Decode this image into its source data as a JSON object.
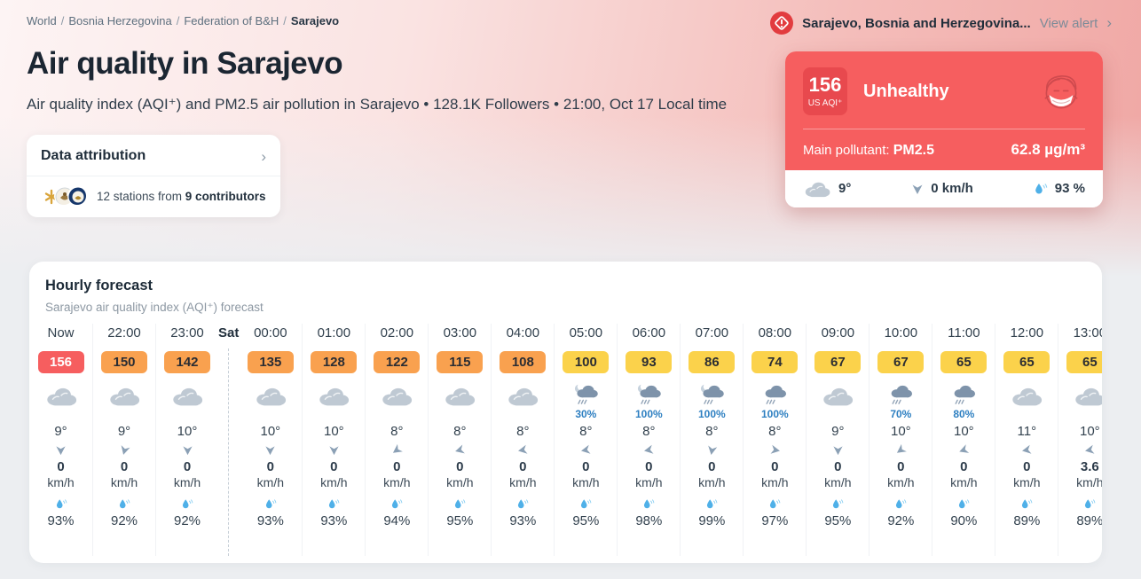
{
  "breadcrumb": {
    "separator": "/",
    "items": [
      "World",
      "Bosnia Herzegovina",
      "Federation of B&H"
    ],
    "current": "Sarajevo"
  },
  "alert": {
    "location": "Sarajevo, Bosnia and Herzegovina...",
    "action": "View alert"
  },
  "header": {
    "title": "Air quality in Sarajevo",
    "subtitle": "Air quality index (AQI⁺) and PM2.5 air pollution in Sarajevo • 128.1K Followers • 21:00, Oct 17 Local time"
  },
  "attribution": {
    "title": "Data attribution",
    "stations_prefix": "12 stations from ",
    "contributors": "9 contributors"
  },
  "current": {
    "aqi": "156",
    "aqi_unit": "US AQI⁺",
    "level": "Unhealthy",
    "pollutant_label": "Main pollutant:",
    "pollutant": "PM2.5",
    "concentration": "62.8 µg/m³",
    "temp": "9°",
    "wind": "0 km/h",
    "humidity": "93 %"
  },
  "forecast": {
    "title": "Hourly forecast",
    "subtitle": "Sarajevo air quality index (AQI⁺) forecast",
    "columns": [
      {
        "time": "Now",
        "aqi": "156",
        "level": "red",
        "icon": "cloud",
        "pop": "",
        "temp": "9°",
        "wind_deg": 0,
        "wind": "0",
        "wind_unit": "km/h",
        "humidity": "93%"
      },
      {
        "time": "22:00",
        "aqi": "150",
        "level": "orange",
        "icon": "cloud",
        "pop": "",
        "temp": "9°",
        "wind_deg": 15,
        "wind": "0",
        "wind_unit": "km/h",
        "humidity": "92%"
      },
      {
        "time": "23:00",
        "aqi": "142",
        "level": "orange",
        "icon": "cloud",
        "pop": "",
        "temp": "10°",
        "wind_deg": 0,
        "wind": "0",
        "wind_unit": "km/h",
        "humidity": "92%"
      },
      {
        "day_start": "Sat",
        "time": "00:00",
        "aqi": "135",
        "level": "orange",
        "icon": "cloud",
        "pop": "",
        "temp": "10°",
        "wind_deg": 0,
        "wind": "0",
        "wind_unit": "km/h",
        "humidity": "93%"
      },
      {
        "time": "01:00",
        "aqi": "128",
        "level": "orange",
        "icon": "cloud",
        "pop": "",
        "temp": "10°",
        "wind_deg": 0,
        "wind": "0",
        "wind_unit": "km/h",
        "humidity": "93%"
      },
      {
        "time": "02:00",
        "aqi": "122",
        "level": "orange",
        "icon": "cloud",
        "pop": "",
        "temp": "8°",
        "wind_deg": 55,
        "wind": "0",
        "wind_unit": "km/h",
        "humidity": "94%"
      },
      {
        "time": "03:00",
        "aqi": "115",
        "level": "orange",
        "icon": "cloud",
        "pop": "",
        "temp": "8°",
        "wind_deg": 75,
        "wind": "0",
        "wind_unit": "km/h",
        "humidity": "95%"
      },
      {
        "time": "04:00",
        "aqi": "108",
        "level": "orange",
        "icon": "cloud",
        "pop": "",
        "temp": "8°",
        "wind_deg": 80,
        "wind": "0",
        "wind_unit": "km/h",
        "humidity": "93%"
      },
      {
        "time": "05:00",
        "aqi": "100",
        "level": "yellow",
        "icon": "rain-moon",
        "pop": "30%",
        "temp": "8°",
        "wind_deg": 80,
        "wind": "0",
        "wind_unit": "km/h",
        "humidity": "95%"
      },
      {
        "time": "06:00",
        "aqi": "93",
        "level": "yellow",
        "icon": "rain-moon",
        "pop": "100%",
        "temp": "8°",
        "wind_deg": 80,
        "wind": "0",
        "wind_unit": "km/h",
        "humidity": "98%"
      },
      {
        "time": "07:00",
        "aqi": "86",
        "level": "yellow",
        "icon": "rain-moon",
        "pop": "100%",
        "temp": "8°",
        "wind_deg": 10,
        "wind": "0",
        "wind_unit": "km/h",
        "humidity": "99%"
      },
      {
        "time": "08:00",
        "aqi": "74",
        "level": "yellow",
        "icon": "rain",
        "pop": "100%",
        "temp": "8°",
        "wind_deg": -80,
        "wind": "0",
        "wind_unit": "km/h",
        "humidity": "97%"
      },
      {
        "time": "09:00",
        "aqi": "67",
        "level": "yellow",
        "icon": "cloud",
        "pop": "",
        "temp": "9°",
        "wind_deg": 0,
        "wind": "0",
        "wind_unit": "km/h",
        "humidity": "95%"
      },
      {
        "time": "10:00",
        "aqi": "67",
        "level": "yellow",
        "icon": "rain",
        "pop": "70%",
        "temp": "10°",
        "wind_deg": 55,
        "wind": "0",
        "wind_unit": "km/h",
        "humidity": "92%"
      },
      {
        "time": "11:00",
        "aqi": "65",
        "level": "yellow",
        "icon": "rain",
        "pop": "80%",
        "temp": "10°",
        "wind_deg": 70,
        "wind": "0",
        "wind_unit": "km/h",
        "humidity": "90%"
      },
      {
        "time": "12:00",
        "aqi": "65",
        "level": "yellow",
        "icon": "cloud",
        "pop": "",
        "temp": "11°",
        "wind_deg": 80,
        "wind": "0",
        "wind_unit": "km/h",
        "humidity": "89%"
      },
      {
        "time": "13:00",
        "aqi": "65",
        "level": "yellow",
        "icon": "cloud",
        "pop": "",
        "temp": "10°",
        "wind_deg": 80,
        "wind": "3.6",
        "wind_unit": "km/h",
        "humidity": "89%"
      }
    ]
  },
  "colors": {
    "aqi_unhealthy_red": "#f65e5f",
    "aqi_usg_orange": "#f9a14f",
    "aqi_moderate_yellow": "#fbd24b",
    "alert_icon_red": "#e23c3f",
    "precip_probability_blue": "#2d7fc1",
    "humidity_drop_blue": "#4fb0e8"
  }
}
